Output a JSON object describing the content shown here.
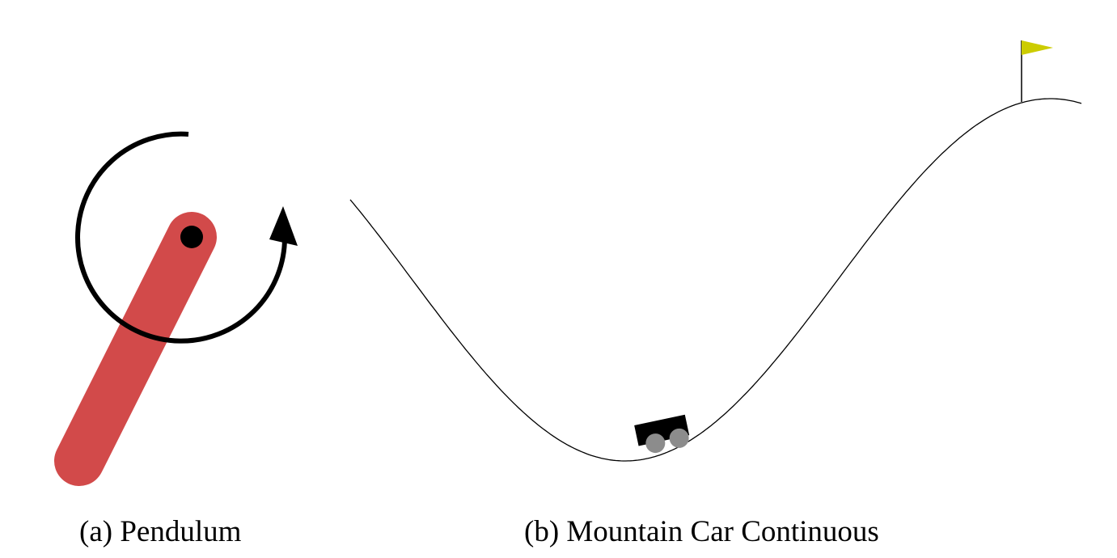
{
  "captions": {
    "pendulum": "(a) Pendulum",
    "mountain_car": "(b) Mountain Car Continuous"
  },
  "colors": {
    "pendulum_rod": "#d24a4a",
    "pivot": "#000000",
    "rotation_arrow": "#000000",
    "track": "#000000",
    "car_body": "#000000",
    "car_wheels": "#8c8c8c",
    "flag": "#cccc00",
    "flagpole": "#000000",
    "background": "#ffffff"
  },
  "icons": {
    "rotation": "circular-arrow-icon",
    "goal": "flag-icon"
  }
}
